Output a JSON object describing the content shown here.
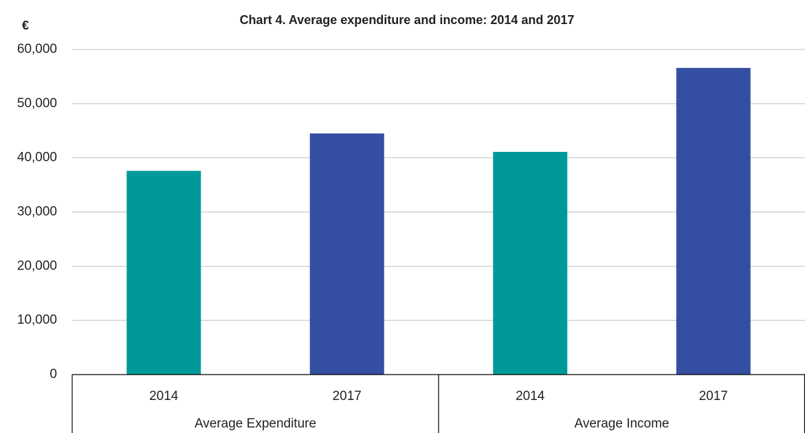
{
  "chart_data": {
    "type": "bar",
    "title": "Chart 4. Average expenditure and income: 2014 and 2017",
    "y_label": "€",
    "categories": [
      "Average Expenditure",
      "Average Income"
    ],
    "series": [
      {
        "name": "2014",
        "color": "#009999",
        "values": [
          37600,
          41100
        ]
      },
      {
        "name": "2017",
        "color": "#344fa1",
        "values": [
          44500,
          56600
        ]
      }
    ],
    "ylim": [
      0,
      60000
    ],
    "yticks": [
      0,
      {
        "value": 10000,
        "label": "10,000"
      },
      {
        "value": 20000,
        "label": "20,000"
      },
      {
        "value": 30000,
        "label": "30,000"
      },
      {
        "value": 40000,
        "label": "40,000"
      },
      {
        "value": 50000,
        "label": "50,000"
      },
      {
        "value": 60000,
        "label": "60,000"
      }
    ],
    "grid": true
  }
}
